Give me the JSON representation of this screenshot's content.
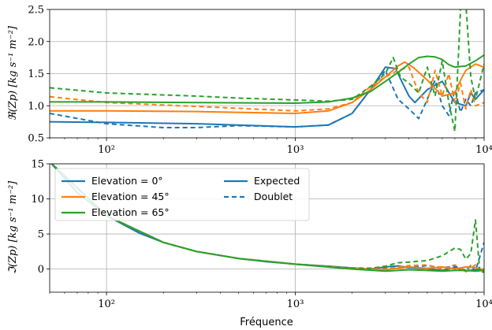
{
  "colors": {
    "c0": "#1f77b4",
    "c45": "#ff7f0e",
    "c65": "#2ca02c"
  },
  "xlabel": "Fréquence",
  "legend": {
    "elevation": [
      "Elevation = 0°",
      "Elevation = 45°",
      "Elevation = 65°"
    ],
    "style": [
      "Expected",
      "Doublet"
    ]
  },
  "chart_data": [
    {
      "type": "line",
      "ylabel": "ℜ(Zp) [kg s⁻¹ m⁻²]",
      "xscale": "log",
      "xlim": [
        50,
        10000
      ],
      "ylim": [
        0.5,
        2.5
      ],
      "yticks": [
        "0.5",
        "1.0",
        "1.5",
        "2.0",
        "2.5"
      ],
      "xticks": [
        "10²",
        "10³",
        "10⁴"
      ],
      "grid": true,
      "series": [
        {
          "name": "Elevation = 0° Expected",
          "color": "c0",
          "dash": false,
          "x": [
            50,
            100,
            300,
            1000,
            1500,
            2000,
            2500,
            3000,
            3400,
            3700,
            4000,
            4300,
            5000,
            6000,
            7000,
            8000,
            8500,
            9000,
            10000
          ],
          "y": [
            0.75,
            0.74,
            0.72,
            0.67,
            0.7,
            0.88,
            1.25,
            1.6,
            1.58,
            1.35,
            1.15,
            1.05,
            1.25,
            1.38,
            1.05,
            1.0,
            1.2,
            1.1,
            1.25
          ]
        },
        {
          "name": "Elevation = 0° Doublet",
          "color": "c0",
          "dash": true,
          "x": [
            50,
            100,
            200,
            300,
            500,
            1000,
            1500,
            2000,
            2500,
            3000,
            3500,
            4000,
            4500,
            5000,
            5500,
            6000,
            6500,
            7000,
            7500,
            8000,
            8500,
            9000,
            10000
          ],
          "y": [
            0.88,
            0.72,
            0.66,
            0.66,
            0.69,
            0.67,
            0.7,
            0.88,
            1.25,
            1.55,
            1.1,
            0.95,
            0.8,
            1.1,
            1.4,
            1.0,
            0.85,
            1.25,
            0.9,
            1.1,
            1.0,
            1.2,
            1.25
          ]
        },
        {
          "name": "Elevation = 45° Expected",
          "color": "c45",
          "dash": false,
          "x": [
            50,
            100,
            300,
            1000,
            1500,
            2000,
            2500,
            3000,
            3500,
            3800,
            4200,
            5000,
            6000,
            7000,
            7500,
            8000,
            9000,
            10000
          ],
          "y": [
            0.92,
            0.92,
            0.91,
            0.88,
            0.92,
            1.05,
            1.25,
            1.45,
            1.62,
            1.68,
            1.6,
            1.4,
            1.15,
            1.2,
            1.4,
            1.55,
            1.65,
            1.6
          ]
        },
        {
          "name": "Elevation = 45° Doublet",
          "color": "c45",
          "dash": true,
          "x": [
            50,
            100,
            300,
            500,
            1000,
            1500,
            2000,
            2500,
            3000,
            3500,
            4000,
            4500,
            5000,
            5500,
            6000,
            6500,
            7000,
            7500,
            8000,
            8500,
            9000,
            10000
          ],
          "y": [
            1.14,
            1.05,
            0.99,
            0.96,
            0.92,
            0.95,
            1.05,
            1.3,
            1.45,
            1.55,
            1.6,
            1.2,
            1.05,
            1.55,
            1.15,
            1.5,
            1.05,
            1.35,
            0.95,
            1.25,
            1.0,
            1.05
          ]
        },
        {
          "name": "Elevation = 65° Expected",
          "color": "c65",
          "dash": false,
          "x": [
            50,
            100,
            300,
            1000,
            1500,
            2000,
            2500,
            3000,
            3500,
            4000,
            4500,
            5000,
            5500,
            6000,
            6500,
            7000,
            8000,
            9000,
            10000
          ],
          "y": [
            1.06,
            1.06,
            1.05,
            1.04,
            1.06,
            1.12,
            1.22,
            1.38,
            1.52,
            1.65,
            1.75,
            1.77,
            1.76,
            1.72,
            1.64,
            1.6,
            1.62,
            1.7,
            1.79
          ]
        },
        {
          "name": "Elevation = 65° Doublet",
          "color": "c65",
          "dash": true,
          "x": [
            50,
            100,
            300,
            500,
            1000,
            1500,
            2000,
            2500,
            3000,
            3300,
            3600,
            4000,
            4500,
            5000,
            5500,
            6000,
            6500,
            7000,
            7500,
            8000,
            8500,
            9000,
            10000
          ],
          "y": [
            1.28,
            1.2,
            1.15,
            1.12,
            1.09,
            1.07,
            1.1,
            1.3,
            1.5,
            1.75,
            1.45,
            1.35,
            1.2,
            1.6,
            1.15,
            1.7,
            1.05,
            0.6,
            2.5,
            2.6,
            1.45,
            1.1,
            1.65
          ]
        }
      ]
    },
    {
      "type": "line",
      "ylabel": "ℑ(Zp) [kg s⁻¹ m⁻²]",
      "xscale": "log",
      "xlim": [
        50,
        10000
      ],
      "ylim": [
        -3.3,
        15
      ],
      "yticks": [
        "0",
        "5",
        "10",
        "15"
      ],
      "xticks": [
        "10²",
        "10³",
        "10⁴"
      ],
      "grid": true,
      "series": [
        {
          "name": "Elevation = 0° Expected",
          "color": "c0",
          "dash": false,
          "x": [
            50,
            70,
            100,
            150,
            200,
            300,
            500,
            700,
            1000,
            1500,
            2000,
            2500,
            3000,
            3500,
            4000,
            5000,
            6000,
            7000,
            8000,
            9000,
            10000
          ],
          "y": [
            15.3,
            10.9,
            7.6,
            5.1,
            3.8,
            2.5,
            1.5,
            1.05,
            0.7,
            0.4,
            0.15,
            0.0,
            0.3,
            0.45,
            0.2,
            0.05,
            -0.2,
            0.2,
            -0.3,
            -0.1,
            0.0
          ]
        },
        {
          "name": "Elevation = 0° Doublet",
          "color": "c0",
          "dash": true,
          "x": [
            50,
            100,
            200,
            300,
            500,
            1000,
            2000,
            3000,
            4000,
            5000,
            6000,
            7000,
            8000,
            8500,
            9000,
            10000
          ],
          "y": [
            15.3,
            7.6,
            3.8,
            2.5,
            1.5,
            0.7,
            0.15,
            0.1,
            0.2,
            0.5,
            0.2,
            0.4,
            -0.2,
            0.5,
            -0.3,
            3.8
          ]
        },
        {
          "name": "Elevation = 45° Expected",
          "color": "c45",
          "dash": false,
          "x": [
            50,
            100,
            200,
            300,
            500,
            1000,
            2000,
            3000,
            4000,
            5000,
            6000,
            7000,
            8000,
            9000,
            10000
          ],
          "y": [
            15.3,
            7.6,
            3.8,
            2.5,
            1.5,
            0.7,
            0.1,
            -0.1,
            0.3,
            0.1,
            0.3,
            0.0,
            0.3,
            0.2,
            -0.1
          ]
        },
        {
          "name": "Elevation = 45° Doublet",
          "color": "c45",
          "dash": true,
          "x": [
            50,
            100,
            200,
            300,
            500,
            1000,
            2000,
            3000,
            4000,
            5000,
            6000,
            7000,
            8000,
            9000,
            10000
          ],
          "y": [
            15.3,
            7.6,
            3.8,
            2.5,
            1.5,
            0.7,
            0.05,
            0.0,
            0.5,
            0.6,
            0.0,
            0.6,
            -0.4,
            0.6,
            -0.5
          ]
        },
        {
          "name": "Elevation = 65° Expected",
          "color": "c65",
          "dash": false,
          "x": [
            50,
            100,
            200,
            300,
            500,
            1000,
            2000,
            3000,
            4000,
            5000,
            6000,
            7000,
            8000,
            9000,
            10000
          ],
          "y": [
            15.3,
            7.6,
            3.8,
            2.5,
            1.5,
            0.7,
            0.0,
            -0.3,
            -0.1,
            -0.2,
            -0.3,
            -0.2,
            -0.2,
            -0.3,
            -0.2
          ]
        },
        {
          "name": "Elevation = 65° Doublet",
          "color": "c65",
          "dash": true,
          "x": [
            50,
            100,
            200,
            300,
            500,
            1000,
            2000,
            2500,
            3000,
            3500,
            4000,
            5000,
            6000,
            7000,
            7500,
            8000,
            8500,
            9000,
            9500,
            10000
          ],
          "y": [
            15.3,
            7.6,
            3.8,
            2.5,
            1.5,
            0.7,
            0.1,
            0.1,
            0.4,
            0.9,
            1.0,
            1.2,
            1.9,
            3.0,
            2.8,
            1.4,
            2.2,
            7.0,
            -0.5,
            -0.4
          ]
        }
      ]
    }
  ]
}
